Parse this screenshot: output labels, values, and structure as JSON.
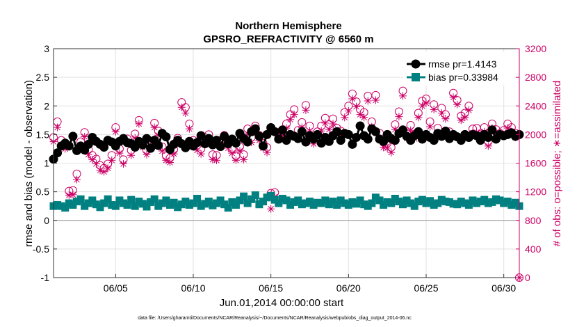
{
  "chart_data": {
    "type": "line",
    "title": "Northern Hemisphere",
    "subtitle": "GPSRO_REFRACTIVITY @ 6560 m",
    "xlabel": "Jun.01,2014 00:00:00 start",
    "ylabel_left": "rmse and bias (model - observation)",
    "ylabel_right": "# of obs: o=possible; ∗=assimilated",
    "footer": "data file: /Users/gharamti/Documents/NCAR/Reanalysis/~/Documents/NCAR/Reanalysis/webpub/obs_diag_output_2014-06.nc",
    "xlim": [
      1,
      31
    ],
    "ylim_left": [
      -1,
      3
    ],
    "ylim_right": [
      0,
      3200
    ],
    "x_ticks": [
      5,
      10,
      15,
      20,
      25,
      30
    ],
    "x_tick_labels": [
      "06/05",
      "06/10",
      "06/15",
      "06/20",
      "06/25",
      "06/30"
    ],
    "y_left_ticks": [
      -1,
      -0.5,
      0,
      0.5,
      1,
      1.5,
      2,
      2.5,
      3
    ],
    "y_left_tick_labels": [
      "-1",
      "-0.5",
      "0",
      "0.5",
      "1",
      "1.5",
      "2",
      "2.5",
      "3"
    ],
    "y_right_ticks": [
      0,
      400,
      800,
      1200,
      1600,
      2000,
      2400,
      2800,
      3200
    ],
    "y_right_tick_labels": [
      "0",
      "400",
      "800",
      "1200",
      "1600",
      "2000",
      "2400",
      "2800",
      "3200"
    ],
    "grid": true,
    "legend_position": "top-right",
    "legend": [
      {
        "key": "rmse",
        "label": "rmse pr=1.4143"
      },
      {
        "key": "bias",
        "label": "bias pr=0.33984"
      }
    ],
    "rmse_color": "#000000",
    "bias_color": "#008080",
    "obs_color": "#cc0066",
    "series": [
      {
        "name": "rmse",
        "x": [
          1.0,
          1.25,
          1.5,
          1.75,
          2.0,
          2.25,
          2.5,
          2.75,
          3.0,
          3.25,
          3.5,
          3.75,
          4.0,
          4.25,
          4.5,
          4.75,
          5.0,
          5.25,
          5.5,
          5.75,
          6.0,
          6.25,
          6.5,
          6.75,
          7.0,
          7.25,
          7.5,
          7.75,
          8.0,
          8.25,
          8.5,
          8.75,
          9.0,
          9.25,
          9.5,
          9.75,
          10.0,
          10.25,
          10.5,
          10.75,
          11.0,
          11.25,
          11.5,
          11.75,
          12.0,
          12.25,
          12.5,
          12.75,
          13.0,
          13.25,
          13.5,
          13.75,
          14.0,
          14.25,
          14.5,
          14.75,
          15.0,
          15.25,
          15.5,
          15.75,
          16.0,
          16.25,
          16.5,
          16.75,
          17.0,
          17.25,
          17.5,
          17.75,
          18.0,
          18.25,
          18.5,
          18.75,
          19.0,
          19.25,
          19.5,
          19.75,
          20.0,
          20.25,
          20.5,
          20.75,
          21.0,
          21.25,
          21.5,
          21.75,
          22.0,
          22.25,
          22.5,
          22.75,
          23.0,
          23.25,
          23.5,
          23.75,
          24.0,
          24.25,
          24.5,
          24.75,
          25.0,
          25.25,
          25.5,
          25.75,
          26.0,
          26.25,
          26.5,
          26.75,
          27.0,
          27.25,
          27.5,
          27.75,
          28.0,
          28.25,
          28.5,
          28.75,
          29.0,
          29.25,
          29.5,
          29.75,
          30.0,
          30.25,
          30.5,
          30.75,
          31.0
        ],
        "values": [
          1.07,
          1.18,
          1.3,
          1.35,
          1.3,
          1.47,
          1.22,
          1.3,
          1.23,
          1.33,
          1.45,
          1.38,
          1.33,
          1.28,
          1.4,
          1.37,
          1.3,
          1.38,
          1.43,
          1.36,
          1.34,
          1.28,
          1.38,
          1.32,
          1.43,
          1.26,
          1.4,
          1.31,
          1.52,
          1.46,
          1.24,
          1.33,
          1.4,
          1.34,
          1.27,
          1.38,
          1.3,
          1.36,
          1.48,
          1.34,
          1.43,
          1.32,
          1.4,
          1.29,
          1.47,
          1.34,
          1.42,
          1.35,
          1.52,
          1.43,
          1.37,
          1.55,
          1.6,
          1.47,
          1.3,
          1.5,
          1.62,
          1.55,
          1.42,
          1.58,
          1.4,
          1.5,
          1.47,
          1.43,
          1.55,
          1.37,
          1.48,
          1.42,
          1.5,
          1.35,
          1.45,
          1.38,
          1.48,
          1.55,
          1.4,
          1.52,
          1.5,
          1.33,
          1.45,
          1.65,
          1.48,
          1.42,
          1.6,
          1.55,
          1.42,
          1.38,
          1.5,
          1.43,
          1.4,
          1.52,
          1.58,
          1.47,
          1.4,
          1.48,
          1.55,
          1.42,
          1.5,
          1.45,
          1.4,
          1.52,
          1.47,
          1.56,
          1.43,
          1.5,
          1.46,
          1.4,
          1.5,
          1.45,
          1.5,
          1.48,
          1.4,
          1.5,
          1.45,
          1.58,
          1.42,
          1.5,
          1.48,
          1.5,
          1.53,
          1.47,
          1.5
        ]
      },
      {
        "name": "bias",
        "x": [
          1.0,
          1.25,
          1.5,
          1.75,
          2.0,
          2.25,
          2.5,
          2.75,
          3.0,
          3.25,
          3.5,
          3.75,
          4.0,
          4.25,
          4.5,
          4.75,
          5.0,
          5.25,
          5.5,
          5.75,
          6.0,
          6.25,
          6.5,
          6.75,
          7.0,
          7.25,
          7.5,
          7.75,
          8.0,
          8.25,
          8.5,
          8.75,
          9.0,
          9.25,
          9.5,
          9.75,
          10.0,
          10.25,
          10.5,
          10.75,
          11.0,
          11.25,
          11.5,
          11.75,
          12.0,
          12.25,
          12.5,
          12.75,
          13.0,
          13.25,
          13.5,
          13.75,
          14.0,
          14.25,
          14.5,
          14.75,
          15.0,
          15.25,
          15.5,
          15.75,
          16.0,
          16.25,
          16.5,
          16.75,
          17.0,
          17.25,
          17.5,
          17.75,
          18.0,
          18.25,
          18.5,
          18.75,
          19.0,
          19.25,
          19.5,
          19.75,
          20.0,
          20.25,
          20.5,
          20.75,
          21.0,
          21.25,
          21.5,
          21.75,
          22.0,
          22.25,
          22.5,
          22.75,
          23.0,
          23.25,
          23.5,
          23.75,
          24.0,
          24.25,
          24.5,
          24.75,
          25.0,
          25.25,
          25.5,
          25.75,
          26.0,
          26.25,
          26.5,
          26.75,
          27.0,
          27.25,
          27.5,
          27.75,
          28.0,
          28.25,
          28.5,
          28.75,
          29.0,
          29.25,
          29.5,
          29.75,
          30.0,
          30.25,
          30.5,
          30.75,
          31.0
        ],
        "values": [
          0.25,
          0.27,
          0.25,
          0.22,
          0.3,
          0.27,
          0.33,
          0.37,
          0.25,
          0.3,
          0.35,
          0.28,
          0.23,
          0.3,
          0.37,
          0.27,
          0.25,
          0.35,
          0.3,
          0.27,
          0.36,
          0.25,
          0.33,
          0.29,
          0.24,
          0.32,
          0.37,
          0.25,
          0.3,
          0.35,
          0.27,
          0.31,
          0.23,
          0.28,
          0.33,
          0.27,
          0.3,
          0.38,
          0.25,
          0.29,
          0.33,
          0.26,
          0.3,
          0.35,
          0.28,
          0.22,
          0.32,
          0.27,
          0.35,
          0.42,
          0.3,
          0.37,
          0.44,
          0.28,
          0.33,
          0.4,
          0.43,
          0.36,
          0.3,
          0.38,
          0.35,
          0.27,
          0.32,
          0.35,
          0.28,
          0.3,
          0.33,
          0.27,
          0.31,
          0.3,
          0.35,
          0.28,
          0.33,
          0.27,
          0.35,
          0.3,
          0.27,
          0.32,
          0.29,
          0.35,
          0.28,
          0.25,
          0.3,
          0.4,
          0.35,
          0.27,
          0.32,
          0.3,
          0.38,
          0.33,
          0.28,
          0.35,
          0.3,
          0.25,
          0.33,
          0.36,
          0.3,
          0.34,
          0.27,
          0.3,
          0.36,
          0.33,
          0.32,
          0.29,
          0.28,
          0.33,
          0.3,
          0.27,
          0.35,
          0.3,
          0.33,
          0.36,
          0.3,
          0.32,
          0.37,
          0.35,
          0.3,
          0.33,
          0.27,
          0.31,
          0.25
        ]
      },
      {
        "name": "possible",
        "x": [
          1.0,
          1.25,
          1.5,
          1.75,
          2.0,
          2.25,
          2.5,
          2.75,
          3.0,
          3.25,
          3.5,
          3.75,
          4.0,
          4.25,
          4.5,
          4.75,
          5.0,
          5.25,
          5.5,
          5.75,
          6.0,
          6.25,
          6.5,
          6.75,
          7.0,
          7.25,
          7.5,
          7.75,
          8.0,
          8.25,
          8.5,
          8.75,
          9.0,
          9.25,
          9.5,
          9.75,
          10.0,
          10.25,
          10.5,
          10.75,
          11.0,
          11.25,
          11.5,
          11.75,
          12.0,
          12.25,
          12.5,
          12.75,
          13.0,
          13.25,
          13.5,
          13.75,
          14.0,
          14.25,
          14.5,
          14.75,
          15.0,
          15.25,
          15.5,
          15.75,
          16.0,
          16.25,
          16.5,
          16.75,
          17.0,
          17.25,
          17.5,
          17.75,
          18.0,
          18.25,
          18.5,
          18.75,
          19.0,
          19.25,
          19.5,
          19.75,
          20.0,
          20.25,
          20.5,
          20.75,
          21.0,
          21.25,
          21.5,
          21.75,
          22.0,
          22.25,
          22.5,
          22.75,
          23.0,
          23.25,
          23.5,
          23.75,
          24.0,
          24.25,
          24.5,
          24.75,
          25.0,
          25.25,
          25.5,
          25.75,
          26.0,
          26.25,
          26.5,
          26.75,
          27.0,
          27.25,
          27.5,
          27.75,
          28.0,
          28.25,
          28.5,
          28.75,
          29.0,
          29.25,
          29.5,
          29.75,
          30.0,
          30.25,
          30.5,
          30.75,
          31.0
        ],
        "values": [
          1960,
          2180,
          1920,
          1860,
          1210,
          1220,
          1450,
          1900,
          2030,
          1790,
          1710,
          1660,
          1570,
          1530,
          1590,
          1710,
          2100,
          1800,
          1650,
          1940,
          1780,
          2010,
          2200,
          1880,
          1780,
          1910,
          2160,
          2050,
          1830,
          1700,
          1670,
          1790,
          1950,
          2450,
          2380,
          2150,
          1920,
          1850,
          1800,
          1960,
          2000,
          1720,
          1710,
          1920,
          1990,
          1880,
          1800,
          1700,
          1830,
          1720,
          2080,
          1960,
          2120,
          1990,
          1880,
          1820,
          1180,
          1190,
          2030,
          2040,
          2150,
          2280,
          2350,
          2060,
          2170,
          2410,
          2120,
          1940,
          2040,
          2120,
          2230,
          2140,
          2220,
          2090,
          2050,
          2310,
          2400,
          2570,
          2460,
          2350,
          2310,
          2540,
          2180,
          2550,
          2020,
          1890,
          1880,
          1820,
          2140,
          2320,
          2610,
          2020,
          2130,
          2000,
          2300,
          2470,
          2500,
          2180,
          2420,
          2090,
          2370,
          2280,
          2040,
          2580,
          2480,
          2260,
          2300,
          2400,
          2080,
          2090,
          2000,
          2100,
          1900,
          2150,
          2070,
          2020,
          2060,
          2150,
          2100,
          2020,
          0
        ]
      },
      {
        "name": "assimilated",
        "x": [
          1.0,
          1.25,
          1.5,
          1.75,
          2.0,
          2.25,
          2.5,
          2.75,
          3.0,
          3.25,
          3.5,
          3.75,
          4.0,
          4.25,
          4.5,
          4.75,
          5.0,
          5.25,
          5.5,
          5.75,
          6.0,
          6.25,
          6.5,
          6.75,
          7.0,
          7.25,
          7.5,
          7.75,
          8.0,
          8.25,
          8.5,
          8.75,
          9.0,
          9.25,
          9.5,
          9.75,
          10.0,
          10.25,
          10.5,
          10.75,
          11.0,
          11.25,
          11.5,
          11.75,
          12.0,
          12.25,
          12.5,
          12.75,
          13.0,
          13.25,
          13.5,
          13.75,
          14.0,
          14.25,
          14.5,
          14.75,
          15.0,
          15.25,
          15.5,
          15.75,
          16.0,
          16.25,
          16.5,
          16.75,
          17.0,
          17.25,
          17.5,
          17.75,
          18.0,
          18.25,
          18.5,
          18.75,
          19.0,
          19.25,
          19.5,
          19.75,
          20.0,
          20.25,
          20.5,
          20.75,
          21.0,
          21.25,
          21.5,
          21.75,
          22.0,
          22.25,
          22.5,
          22.75,
          23.0,
          23.25,
          23.5,
          23.75,
          24.0,
          24.25,
          24.5,
          24.75,
          25.0,
          25.25,
          25.5,
          25.75,
          26.0,
          26.25,
          26.5,
          26.75,
          27.0,
          27.25,
          27.5,
          27.75,
          28.0,
          28.25,
          28.5,
          28.75,
          29.0,
          29.25,
          29.5,
          29.75,
          30.0,
          30.25,
          30.5,
          30.75,
          31.0
        ],
        "values": [
          1900,
          2100,
          1850,
          1800,
          1150,
          1160,
          1370,
          1850,
          1970,
          1720,
          1650,
          1590,
          1500,
          1480,
          1530,
          1640,
          2040,
          1740,
          1590,
          1880,
          1710,
          1950,
          2150,
          1820,
          1720,
          1850,
          2100,
          1990,
          1770,
          1640,
          1610,
          1730,
          1890,
          2380,
          2300,
          2080,
          1850,
          1780,
          1730,
          1900,
          1940,
          1650,
          1640,
          1850,
          1930,
          1810,
          1740,
          1640,
          1770,
          1650,
          2010,
          1890,
          2050,
          1920,
          1810,
          1750,
          960,
          1130,
          1970,
          1980,
          2090,
          2210,
          2280,
          2000,
          2100,
          2340,
          2050,
          1870,
          1980,
          2050,
          2160,
          2070,
          2150,
          2020,
          1980,
          2240,
          2330,
          2500,
          2390,
          2280,
          2240,
          2470,
          2110,
          2480,
          1950,
          1820,
          1810,
          1750,
          2070,
          2250,
          2540,
          1950,
          2060,
          1940,
          2240,
          2400,
          2440,
          2110,
          2350,
          2020,
          2300,
          2220,
          1980,
          2520,
          2420,
          2200,
          2240,
          2340,
          2020,
          2030,
          1940,
          2040,
          1840,
          2090,
          2010,
          1960,
          2000,
          2090,
          2040,
          1960,
          0
        ]
      }
    ]
  }
}
